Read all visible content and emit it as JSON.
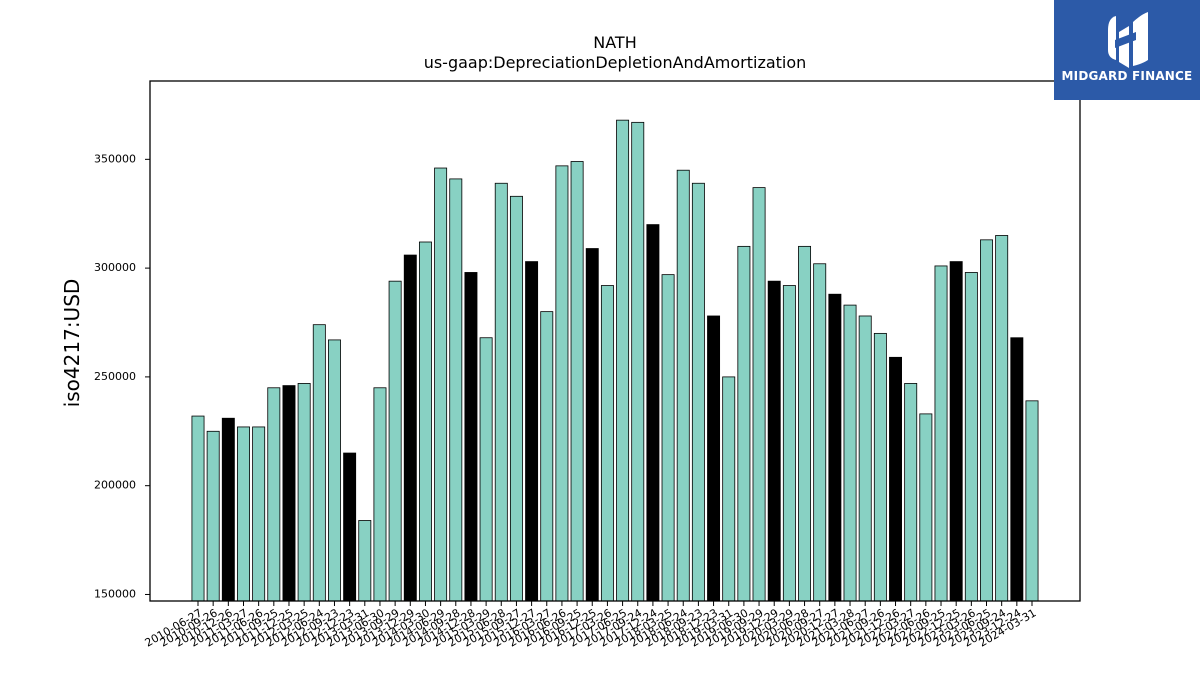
{
  "chart_data": {
    "type": "bar",
    "title": "NATH",
    "subtitle": "us-gaap:DepreciationDepletionAndAmortization",
    "xlabel": "",
    "ylabel": "iso4217:USD",
    "ylim": [
      147000,
      386000
    ],
    "yticks": [
      150000,
      200000,
      250000,
      300000,
      350000
    ],
    "grid": false,
    "colors": {
      "default": "#88d1c3",
      "highlight": "#000000",
      "edge": "#000000"
    },
    "categories": [
      "2010-06-27",
      "2010-09-26",
      "2010-12-26",
      "2011-03-27",
      "2011-06-26",
      "2011-09-25",
      "2011-12-25",
      "2012-03-25",
      "2012-06-24",
      "2012-09-23",
      "2012-12-23",
      "2013-03-31",
      "2013-06-30",
      "2013-09-29",
      "2013-12-29",
      "2014-03-30",
      "2014-06-29",
      "2014-09-28",
      "2014-12-28",
      "2015-03-29",
      "2015-06-28",
      "2015-09-27",
      "2015-12-27",
      "2016-03-27",
      "2016-06-26",
      "2016-09-25",
      "2016-12-25",
      "2017-03-26",
      "2017-06-25",
      "2017-09-24",
      "2017-12-24",
      "2018-03-25",
      "2018-06-24",
      "2018-09-23",
      "2018-12-23",
      "2019-03-31",
      "2019-06-30",
      "2019-09-29",
      "2019-12-29",
      "2020-03-29",
      "2020-06-28",
      "2020-09-27",
      "2020-12-27",
      "2021-03-28",
      "2021-06-27",
      "2021-09-26",
      "2021-12-26",
      "2022-03-27",
      "2022-06-26",
      "2022-09-25",
      "2022-12-25",
      "2023-03-26",
      "2023-06-25",
      "2023-09-24",
      "2023-12-24",
      "2024-03-31"
    ],
    "values": [
      232000,
      225000,
      231000,
      227000,
      227000,
      245000,
      246000,
      247000,
      274000,
      267000,
      215000,
      184000,
      245000,
      294000,
      306000,
      312000,
      346000,
      341000,
      298000,
      268000,
      339000,
      333000,
      303000,
      280000,
      347000,
      349000,
      309000,
      292000,
      368000,
      367000,
      320000,
      297000,
      345000,
      339000,
      278000,
      250000,
      310000,
      337000,
      294000,
      292000,
      310000,
      302000,
      288000,
      283000,
      278000,
      270000,
      259000,
      247000,
      233000,
      301000,
      303000,
      298000,
      313000,
      315000,
      268000,
      239000
    ],
    "highlighted": [
      false,
      false,
      true,
      false,
      false,
      false,
      true,
      false,
      false,
      false,
      true,
      false,
      false,
      false,
      true,
      false,
      false,
      false,
      true,
      false,
      false,
      false,
      true,
      false,
      false,
      false,
      true,
      false,
      false,
      false,
      true,
      false,
      false,
      false,
      true,
      false,
      false,
      false,
      true,
      false,
      false,
      false,
      true,
      false,
      false,
      false,
      true,
      false,
      false,
      false,
      true,
      false,
      false,
      false,
      true,
      false
    ]
  },
  "logo": {
    "text": "MIDGARD FINANCE",
    "icon": "midgard-logo-icon",
    "background": "#2c5aa8"
  }
}
